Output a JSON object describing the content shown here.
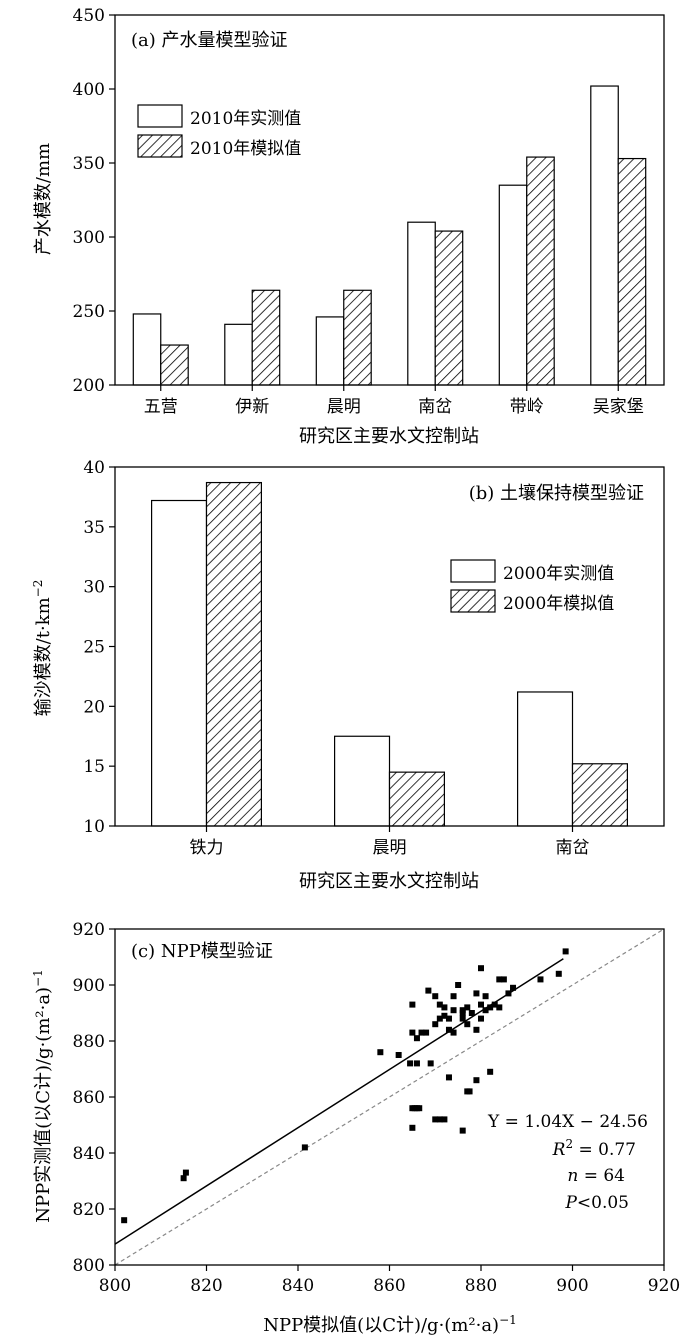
{
  "chart_data": [
    {
      "type": "bar",
      "title": "(a) 产水量模型验证",
      "xlabel": "研究区主要水文控制站",
      "ylabel": "产水模数/mm",
      "categories": [
        "五营",
        "伊新",
        "晨明",
        "南岔",
        "带岭",
        "吴家堡"
      ],
      "series": [
        {
          "name": "2010年实测值",
          "fill": "white",
          "values": [
            248,
            241,
            246,
            310,
            335,
            402
          ]
        },
        {
          "name": "2010年模拟值",
          "fill": "hatch",
          "values": [
            227,
            264,
            264,
            304,
            354,
            353
          ]
        }
      ],
      "ylim": [
        200,
        450
      ],
      "yticks": [
        "200",
        "250",
        "300",
        "350",
        "400",
        "450"
      ],
      "legend_position": "top-left",
      "grid": false
    },
    {
      "type": "bar",
      "title": "(b) 土壤保持模型验证",
      "xlabel": "研究区主要水文控制站",
      "ylabel": "输沙模数/t·km",
      "ylabel_superscript": "−2",
      "categories": [
        "铁力",
        "晨明",
        "南岔"
      ],
      "series": [
        {
          "name": "2000年实测值",
          "fill": "white",
          "values": [
            37.2,
            17.5,
            21.2
          ]
        },
        {
          "name": "2000年模拟值",
          "fill": "hatch",
          "values": [
            38.7,
            14.5,
            15.2
          ]
        }
      ],
      "ylim": [
        10,
        40
      ],
      "yticks": [
        "10",
        "15",
        "20",
        "25",
        "30",
        "35",
        "40"
      ],
      "legend_position": "right",
      "grid": false
    },
    {
      "type": "scatter",
      "title": "(c) NPP模型验证",
      "xlabel": "NPP模拟值(以C计)/g·(m²·a)",
      "xlabel_superscript": "−1",
      "ylabel": "NPP实测值(以C计)/g·(m²·a)",
      "ylabel_superscript": "−1",
      "xlim": [
        800,
        920
      ],
      "ylim": [
        800,
        920
      ],
      "xticks": [
        "800",
        "820",
        "840",
        "860",
        "880",
        "900",
        "920"
      ],
      "yticks": [
        "800",
        "820",
        "840",
        "860",
        "880",
        "900",
        "920"
      ],
      "fit_line": {
        "slope": 1.04,
        "intercept": -24.56,
        "x_range": [
          800,
          898
        ]
      },
      "identity_line": {
        "x_range": [
          800,
          920
        ],
        "style": "dashed",
        "color": "#888888"
      },
      "points": [
        [
          802,
          816
        ],
        [
          815,
          831
        ],
        [
          815.5,
          833
        ],
        [
          841.5,
          842
        ],
        [
          858,
          876
        ],
        [
          865,
          849
        ],
        [
          865,
          856
        ],
        [
          865.5,
          856
        ],
        [
          866,
          856
        ],
        [
          866.5,
          856
        ],
        [
          864.5,
          872
        ],
        [
          866,
          872
        ],
        [
          869,
          872
        ],
        [
          870,
          852
        ],
        [
          871,
          852
        ],
        [
          872,
          852
        ],
        [
          873,
          867
        ],
        [
          876,
          848
        ],
        [
          877,
          862
        ],
        [
          877.5,
          862
        ],
        [
          879,
          866
        ],
        [
          882,
          869
        ],
        [
          865,
          883
        ],
        [
          866,
          881
        ],
        [
          867,
          883
        ],
        [
          868,
          883
        ],
        [
          868.5,
          898
        ],
        [
          865,
          893
        ],
        [
          870,
          896
        ],
        [
          870,
          886
        ],
        [
          871,
          888
        ],
        [
          871,
          893
        ],
        [
          872,
          892
        ],
        [
          872,
          889
        ],
        [
          873,
          888
        ],
        [
          873,
          884
        ],
        [
          874,
          891
        ],
        [
          874,
          896
        ],
        [
          874,
          883
        ],
        [
          875,
          900
        ],
        [
          876,
          891
        ],
        [
          876,
          888
        ],
        [
          877,
          886
        ],
        [
          877,
          892
        ],
        [
          878,
          890
        ],
        [
          879,
          884
        ],
        [
          879,
          897
        ],
        [
          880,
          888
        ],
        [
          880,
          893
        ],
        [
          880,
          906
        ],
        [
          881,
          891
        ],
        [
          881,
          896
        ],
        [
          882,
          892
        ],
        [
          883,
          893
        ],
        [
          884,
          902
        ],
        [
          884,
          892
        ],
        [
          885,
          902
        ],
        [
          886,
          897
        ],
        [
          887,
          899
        ],
        [
          893,
          902
        ],
        [
          897,
          904
        ],
        [
          898.5,
          912
        ],
        [
          862,
          875
        ],
        [
          876,
          890
        ]
      ],
      "annotations": {
        "equation": "Y = 1.04X − 24.56",
        "r2_label": "R",
        "r2_sup": "2",
        "r2_value": " = 0.77",
        "n_label": "n",
        "n_value": " = 64",
        "p_label": "P",
        "p_value": "<0.05"
      }
    }
  ]
}
